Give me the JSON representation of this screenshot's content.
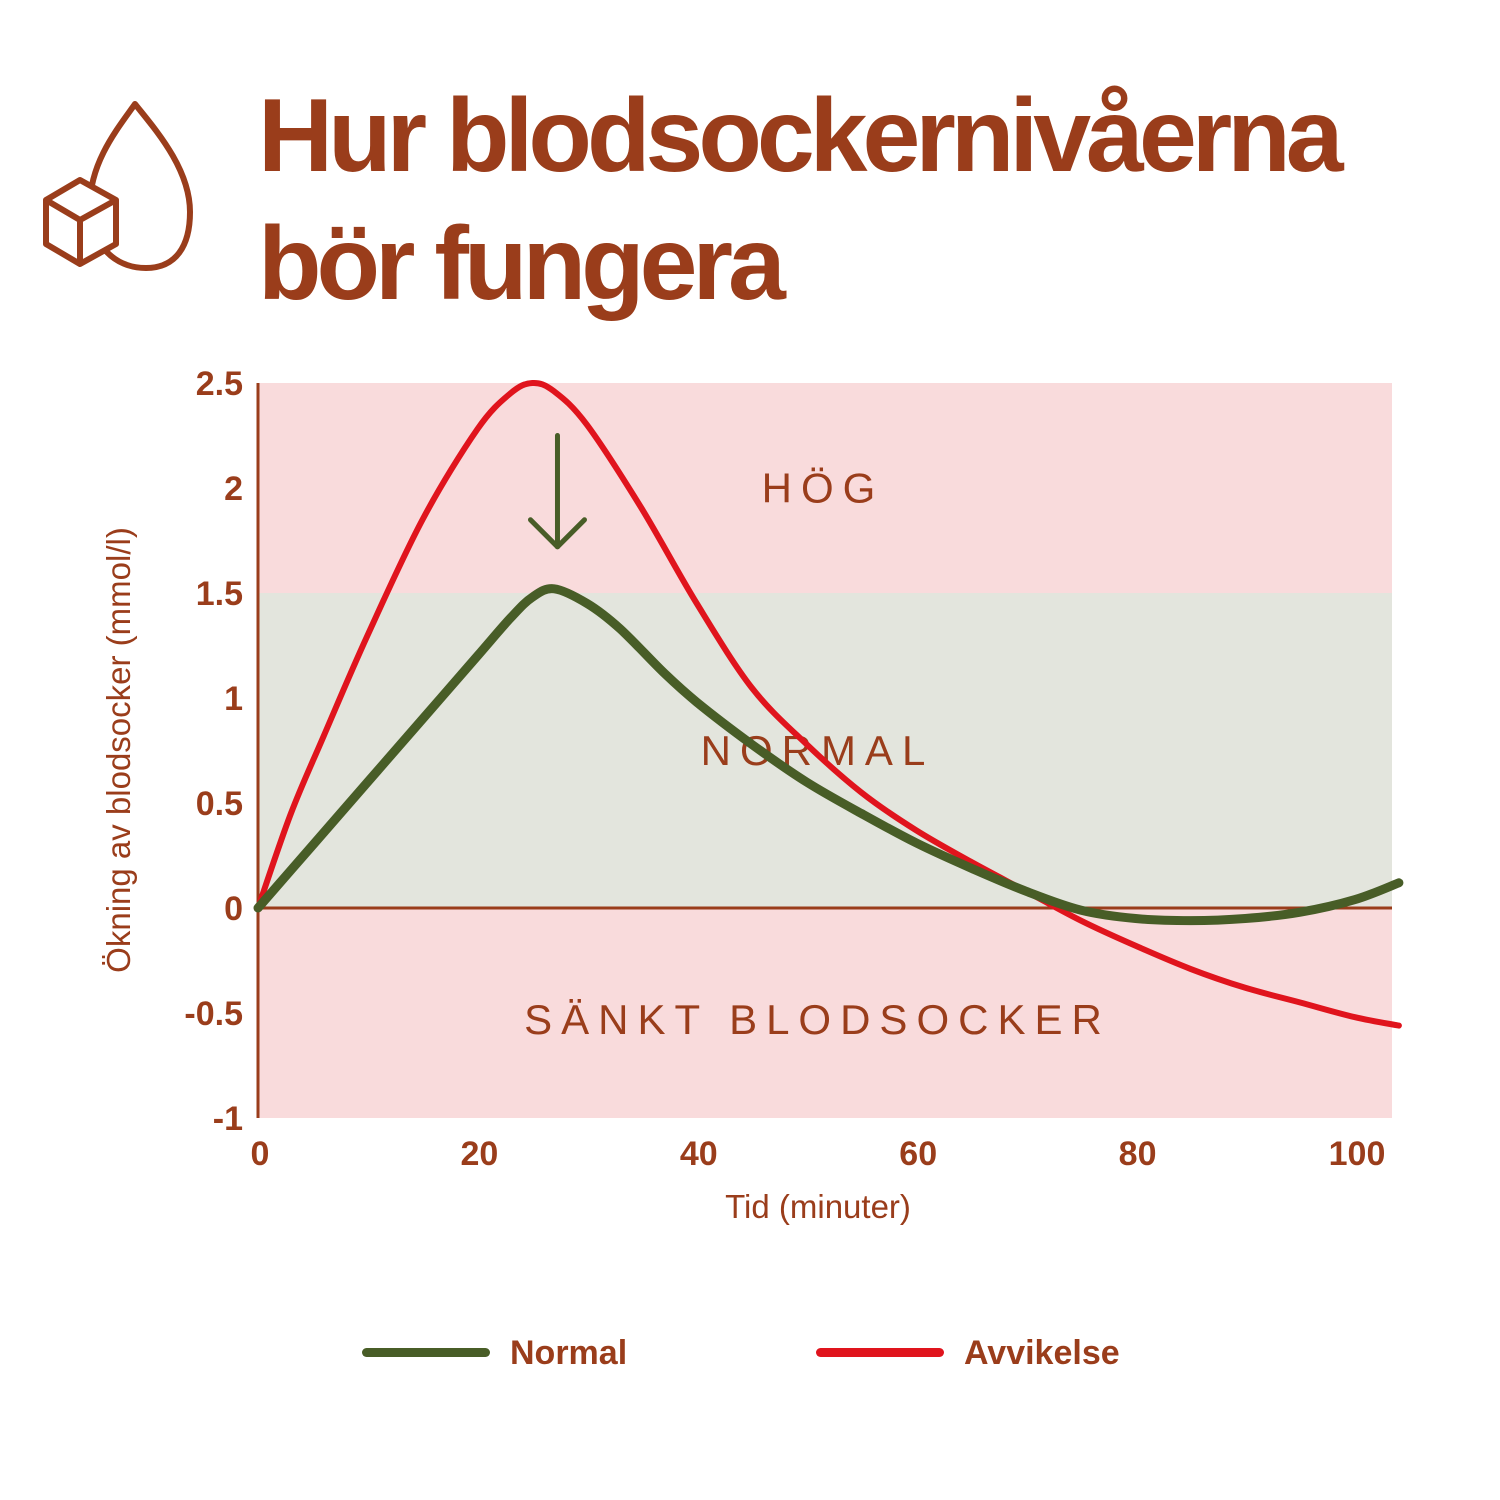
{
  "title": {
    "line1": "Hur blodsockernivåerna",
    "line2": "bör fungera"
  },
  "icons": {
    "logo": "blood-drop-sugar-cube-icon"
  },
  "colors": {
    "brand": "#9a3d1b",
    "high_zone": "#f9dbdc",
    "normal_zone": "#e3e5dd",
    "low_zone": "#f9dbdc",
    "normal_series": "#485d27",
    "deviation_series": "#e0141d"
  },
  "chart_data": {
    "type": "line",
    "xlabel": "Tid (minuter)",
    "ylabel": "Ökning av blodsocker (mmol/l)",
    "xlim": [
      0,
      105
    ],
    "ylim": [
      -1,
      2.5
    ],
    "xticks": [
      0,
      20,
      40,
      60,
      80,
      100
    ],
    "yticks": [
      2.5,
      2,
      1.5,
      1,
      0.5,
      0,
      -0.5,
      -1
    ],
    "xtick_labels": [
      "0",
      "20",
      "40",
      "60",
      "80",
      "100"
    ],
    "ytick_labels": [
      "2.5",
      "2",
      "1.5",
      "1",
      "0.5",
      "0",
      "-0.5",
      "-1"
    ],
    "zones": [
      {
        "label": "HÖG",
        "from": 1.5,
        "to": 2.5
      },
      {
        "label": "NORMAL",
        "from": 0,
        "to": 1.5
      },
      {
        "label": "SÄNKT BLODSOCKER",
        "from": -1,
        "to": 0
      }
    ],
    "annotation": "downward arrow from the Avvikelse peak toward the Normal peak",
    "series": [
      {
        "name": "Normal",
        "x": [
          0,
          5,
          10,
          15,
          20,
          23,
          25,
          27,
          30,
          33,
          37,
          40,
          45,
          50,
          55,
          60,
          65,
          70,
          75,
          80,
          85,
          90,
          95,
          100,
          104
        ],
        "y": [
          0,
          0.3,
          0.6,
          0.9,
          1.2,
          1.38,
          1.48,
          1.52,
          1.45,
          1.33,
          1.12,
          0.98,
          0.78,
          0.6,
          0.45,
          0.31,
          0.19,
          0.08,
          -0.01,
          -0.05,
          -0.06,
          -0.05,
          -0.02,
          0.04,
          0.12
        ]
      },
      {
        "name": "Avvikelse",
        "x": [
          0,
          3,
          6,
          10,
          15,
          20,
          23,
          25,
          27,
          30,
          35,
          40,
          45,
          50,
          55,
          60,
          65,
          70,
          75,
          80,
          85,
          90,
          95,
          100,
          104
        ],
        "y": [
          0,
          0.45,
          0.82,
          1.3,
          1.85,
          2.28,
          2.45,
          2.5,
          2.46,
          2.3,
          1.9,
          1.45,
          1.05,
          0.78,
          0.55,
          0.37,
          0.22,
          0.08,
          -0.06,
          -0.18,
          -0.29,
          -0.38,
          -0.45,
          -0.52,
          -0.56
        ]
      }
    ]
  }
}
